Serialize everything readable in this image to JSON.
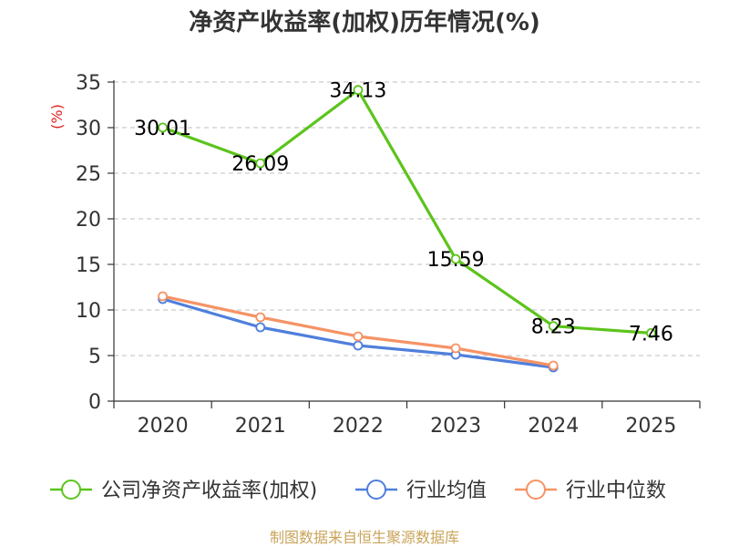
{
  "colors": {
    "company": "#5cc41c",
    "industry_avg": "#4f7fdc",
    "industry_median": "#f59366",
    "grid": "#cccccc",
    "axis": "#333333",
    "unit": "#e02020",
    "source": "#c9a45a"
  },
  "chart_data": {
    "type": "line",
    "title": "净资产收益率(加权)历年情况(%)",
    "ylabel": "(%)",
    "xlabel": "",
    "categories": [
      "2020",
      "2021",
      "2022",
      "2023",
      "2024",
      "2025"
    ],
    "ylim": [
      0,
      35
    ],
    "yticks": [
      0,
      5,
      10,
      15,
      20,
      25,
      30,
      35
    ],
    "ytick_labels": [
      "0",
      "5",
      "10",
      "15",
      "20",
      "25",
      "30",
      "35"
    ],
    "grid": true,
    "legend_position": "bottom",
    "series": [
      {
        "key": "company",
        "name": "公司净资产收益率(加权)",
        "values": [
          30.01,
          26.09,
          34.13,
          15.59,
          8.23,
          7.46
        ],
        "labels": [
          "30.01",
          "26.09",
          "34.13",
          "15.59",
          "8.23",
          "7.46"
        ],
        "show_labels": true,
        "color": "#5cc41c"
      },
      {
        "key": "industry_avg",
        "name": "行业均值",
        "values": [
          11.2,
          8.1,
          6.1,
          5.1,
          3.7,
          null
        ],
        "show_labels": false,
        "color": "#4f7fdc"
      },
      {
        "key": "industry_median",
        "name": "行业中位数",
        "values": [
          11.5,
          9.2,
          7.1,
          5.8,
          3.9,
          null
        ],
        "show_labels": false,
        "color": "#f59366"
      }
    ]
  },
  "footer": {
    "source": "制图数据来自恒生聚源数据库"
  }
}
